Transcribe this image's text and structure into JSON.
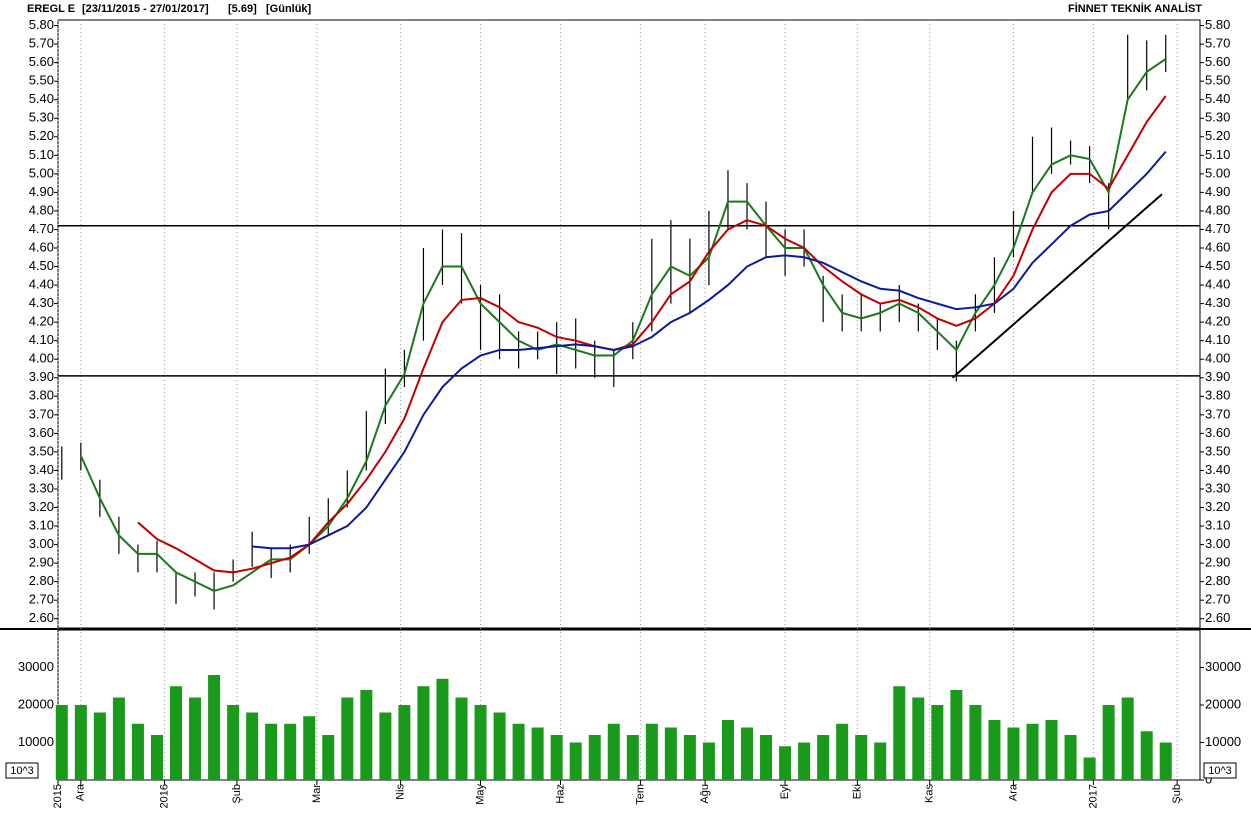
{
  "chart_data": {
    "type": "bar-ohlc",
    "title": "EREGL E",
    "range_label": "[23/11/2015 - 27/01/2017]",
    "last_label": "[5.69]",
    "period_label": "[Günlük]",
    "brand": "FİNNET TEKNİK ANALİST",
    "xlim": [
      0,
      300
    ],
    "xticks": [
      {
        "value": 0,
        "label": "2015"
      },
      {
        "value": 6,
        "label": "Ara"
      },
      {
        "value": 28,
        "label": "2016"
      },
      {
        "value": 47,
        "label": "Şub"
      },
      {
        "value": 68,
        "label": "Mar"
      },
      {
        "value": 90,
        "label": "Nis"
      },
      {
        "value": 111,
        "label": "May"
      },
      {
        "value": 132,
        "label": "Haz"
      },
      {
        "value": 153,
        "label": "Tem"
      },
      {
        "value": 170,
        "label": "Ağu"
      },
      {
        "value": 191,
        "label": "Eyl"
      },
      {
        "value": 210,
        "label": "Eki"
      },
      {
        "value": 229,
        "label": "Kas"
      },
      {
        "value": 251,
        "label": "Ara"
      },
      {
        "value": 272,
        "label": "2017"
      },
      {
        "value": 294,
        "label": "Şub"
      }
    ],
    "ylim": [
      2.55,
      5.83
    ],
    "yticks": [
      {
        "value": 2.6,
        "label": "2.60"
      },
      {
        "value": 2.7,
        "label": "2.70"
      },
      {
        "value": 2.8,
        "label": "2.80"
      },
      {
        "value": 2.9,
        "label": "2.90"
      },
      {
        "value": 3.0,
        "label": "3.00"
      },
      {
        "value": 3.1,
        "label": "3.10"
      },
      {
        "value": 3.2,
        "label": "3.20"
      },
      {
        "value": 3.3,
        "label": "3.30"
      },
      {
        "value": 3.4,
        "label": "3.40"
      },
      {
        "value": 3.5,
        "label": "3.50"
      },
      {
        "value": 3.6,
        "label": "3.60"
      },
      {
        "value": 3.7,
        "label": "3.70"
      },
      {
        "value": 3.8,
        "label": "3.80"
      },
      {
        "value": 3.9,
        "label": "3.90"
      },
      {
        "value": 4.0,
        "label": "4.00"
      },
      {
        "value": 4.1,
        "label": "4.10"
      },
      {
        "value": 4.2,
        "label": "4.20"
      },
      {
        "value": 4.3,
        "label": "4.30"
      },
      {
        "value": 4.4,
        "label": "4.40"
      },
      {
        "value": 4.5,
        "label": "4.50"
      },
      {
        "value": 4.6,
        "label": "4.60"
      },
      {
        "value": 4.7,
        "label": "4.70"
      },
      {
        "value": 4.8,
        "label": "4.80"
      },
      {
        "value": 4.9,
        "label": "4.90"
      },
      {
        "value": 5.0,
        "label": "5.00"
      },
      {
        "value": 5.1,
        "label": "5.10"
      },
      {
        "value": 5.2,
        "label": "5.20"
      },
      {
        "value": 5.3,
        "label": "5.30"
      },
      {
        "value": 5.4,
        "label": "5.40"
      },
      {
        "value": 5.5,
        "label": "5.50"
      },
      {
        "value": 5.6,
        "label": "5.60"
      },
      {
        "value": 5.7,
        "label": "5.70"
      },
      {
        "value": 5.8,
        "label": "5.80"
      }
    ],
    "x": [
      1,
      6,
      11,
      16,
      21,
      26,
      31,
      36,
      41,
      46,
      51,
      56,
      61,
      66,
      71,
      76,
      81,
      86,
      91,
      96,
      101,
      106,
      111,
      116,
      121,
      126,
      131,
      136,
      141,
      146,
      151,
      156,
      161,
      166,
      171,
      176,
      181,
      186,
      191,
      196,
      201,
      206,
      211,
      216,
      221,
      226,
      231,
      236,
      241,
      246,
      251,
      256,
      261,
      266,
      271,
      276,
      281,
      286,
      291
    ],
    "low": [
      3.35,
      3.4,
      3.15,
      2.95,
      2.85,
      2.85,
      2.68,
      2.72,
      2.65,
      2.8,
      2.88,
      2.82,
      2.85,
      2.95,
      3.05,
      3.2,
      3.4,
      3.65,
      3.85,
      4.1,
      4.4,
      4.3,
      4.05,
      4.0,
      3.95,
      4.0,
      3.92,
      3.95,
      3.9,
      3.85,
      4.0,
      4.15,
      4.3,
      4.25,
      4.4,
      4.7,
      4.7,
      4.55,
      4.45,
      4.5,
      4.2,
      4.15,
      4.15,
      4.15,
      4.2,
      4.15,
      4.05,
      3.88,
      4.15,
      4.25,
      4.55,
      4.9,
      5.0,
      5.05,
      4.95,
      4.7,
      5.4,
      5.45,
      5.55
    ],
    "high": [
      3.53,
      3.55,
      3.35,
      3.15,
      3.0,
      3.02,
      2.85,
      2.85,
      2.85,
      2.92,
      3.07,
      2.98,
      3.0,
      3.15,
      3.25,
      3.4,
      3.72,
      3.95,
      4.05,
      4.6,
      4.7,
      4.68,
      4.4,
      4.35,
      4.15,
      4.15,
      4.2,
      4.22,
      4.1,
      4.05,
      4.2,
      4.65,
      4.75,
      4.65,
      4.8,
      5.02,
      4.95,
      4.85,
      4.7,
      4.7,
      4.45,
      4.35,
      4.35,
      4.3,
      4.4,
      4.3,
      4.22,
      4.1,
      4.35,
      4.55,
      4.8,
      5.2,
      5.25,
      5.18,
      5.15,
      4.95,
      5.75,
      5.72,
      5.75
    ],
    "color": "#000000",
    "series": [
      {
        "name": "MA fast",
        "color": "#1a7a1a",
        "values": [
          null,
          3.48,
          3.25,
          3.05,
          2.95,
          2.95,
          2.85,
          2.8,
          2.75,
          2.78,
          2.85,
          2.92,
          2.92,
          3.0,
          3.1,
          3.25,
          3.45,
          3.75,
          3.92,
          4.3,
          4.5,
          4.5,
          4.3,
          4.2,
          4.1,
          4.05,
          4.08,
          4.05,
          4.02,
          4.02,
          4.1,
          4.35,
          4.5,
          4.45,
          4.55,
          4.85,
          4.85,
          4.72,
          4.6,
          4.6,
          4.4,
          4.25,
          4.22,
          4.25,
          4.3,
          4.25,
          4.15,
          4.05,
          4.25,
          4.4,
          4.6,
          4.9,
          5.05,
          5.1,
          5.08,
          4.9,
          5.4,
          5.55,
          5.62
        ]
      },
      {
        "name": "MA mid",
        "color": "#c00000",
        "values": [
          null,
          null,
          null,
          null,
          3.12,
          3.03,
          2.98,
          2.92,
          2.86,
          2.85,
          2.87,
          2.9,
          2.93,
          3.0,
          3.12,
          3.22,
          3.35,
          3.5,
          3.68,
          3.95,
          4.2,
          4.32,
          4.33,
          4.28,
          4.2,
          4.17,
          4.12,
          4.1,
          4.07,
          4.05,
          4.08,
          4.2,
          4.35,
          4.42,
          4.58,
          4.7,
          4.75,
          4.72,
          4.65,
          4.6,
          4.5,
          4.42,
          4.35,
          4.3,
          4.32,
          4.28,
          4.22,
          4.18,
          4.22,
          4.3,
          4.45,
          4.7,
          4.9,
          5.0,
          5.0,
          4.92,
          5.1,
          5.28,
          5.42
        ]
      },
      {
        "name": "MA slow",
        "color": "#0a1a9a",
        "values": [
          null,
          null,
          null,
          null,
          null,
          null,
          null,
          null,
          null,
          null,
          2.99,
          2.98,
          2.98,
          3.0,
          3.05,
          3.1,
          3.2,
          3.35,
          3.5,
          3.7,
          3.85,
          3.95,
          4.02,
          4.05,
          4.05,
          4.06,
          4.07,
          4.08,
          4.07,
          4.05,
          4.07,
          4.12,
          4.2,
          4.25,
          4.32,
          4.4,
          4.5,
          4.55,
          4.56,
          4.55,
          4.52,
          4.47,
          4.42,
          4.38,
          4.37,
          4.33,
          4.3,
          4.27,
          4.28,
          4.3,
          4.38,
          4.52,
          4.62,
          4.72,
          4.78,
          4.8,
          4.9,
          5.0,
          5.12
        ]
      }
    ],
    "levels": [
      4.72,
      3.91
    ],
    "trendline": {
      "x": [
        235,
        290
      ],
      "y": [
        3.9,
        4.89
      ]
    },
    "volume": {
      "color": "#1a9a1a",
      "unit": "10^3",
      "ylim": [
        0,
        40000
      ],
      "yticks": [
        0,
        10000,
        20000,
        30000
      ],
      "values": [
        20000,
        20000,
        18000,
        22000,
        15000,
        12000,
        25000,
        22000,
        28000,
        20000,
        18000,
        15000,
        15000,
        17000,
        12000,
        22000,
        24000,
        18000,
        20000,
        25000,
        27000,
        22000,
        20000,
        18000,
        15000,
        14000,
        12000,
        10000,
        12000,
        15000,
        12000,
        15000,
        14000,
        12000,
        10000,
        16000,
        14000,
        12000,
        9000,
        10000,
        12000,
        15000,
        12000,
        10000,
        25000,
        22000,
        20000,
        24000,
        20000,
        16000,
        14000,
        15000,
        16000,
        12000,
        6000,
        20000,
        22000,
        13000,
        10000
      ]
    }
  }
}
